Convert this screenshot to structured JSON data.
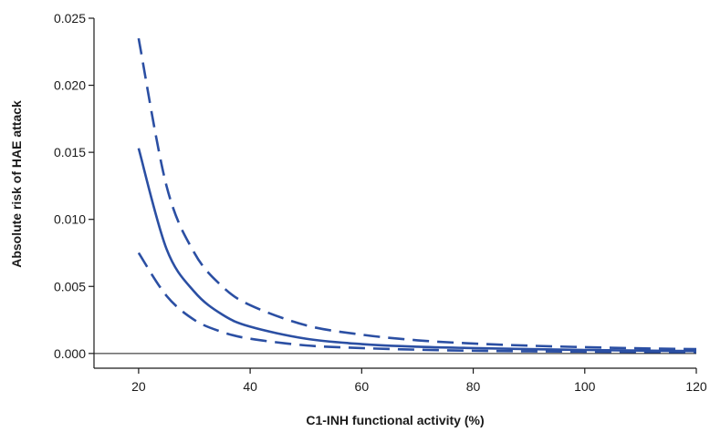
{
  "chart_data": {
    "type": "line",
    "title": "",
    "xlabel": "C1-INH functional activity (%)",
    "ylabel": "Absolute risk of HAE attack",
    "xlim": [
      12,
      120
    ],
    "ylim": [
      -0.0011,
      0.025
    ],
    "xticks": [
      20,
      40,
      60,
      80,
      100,
      120
    ],
    "yticks": [
      0.0,
      0.005,
      0.01,
      0.015,
      0.02,
      0.025
    ],
    "ytick_labels": [
      "0.000",
      "0.005",
      "0.010",
      "0.015",
      "0.020",
      "0.025"
    ],
    "reference_line_y": 0,
    "grid": false,
    "legend": "none",
    "color": "#2b4fa3",
    "series": [
      {
        "style": "solid",
        "x": [
          20,
          25,
          30,
          35,
          40,
          50,
          60,
          70,
          80,
          90,
          100,
          110,
          120
        ],
        "y": [
          0.0153,
          0.0078,
          0.0046,
          0.0029,
          0.002,
          0.0011,
          0.0007,
          0.0005,
          0.0004,
          0.00032,
          0.00026,
          0.00021,
          0.00018
        ]
      },
      {
        "style": "dashed",
        "x": [
          20,
          25,
          30,
          35,
          40,
          50,
          60,
          70,
          80,
          90,
          100,
          110,
          120
        ],
        "y": [
          0.0235,
          0.0125,
          0.0075,
          0.005,
          0.0036,
          0.0021,
          0.0014,
          0.00098,
          0.00074,
          0.00058,
          0.00047,
          0.00038,
          0.00032
        ]
      },
      {
        "style": "dashed",
        "x": [
          20,
          25,
          30,
          35,
          40,
          50,
          60,
          70,
          80,
          90,
          100,
          110,
          120
        ],
        "y": [
          0.0075,
          0.0043,
          0.0025,
          0.0016,
          0.0011,
          0.0006,
          0.0004,
          0.00028,
          0.0002,
          0.00016,
          0.00013,
          0.00011,
          0.0001
        ]
      }
    ]
  }
}
